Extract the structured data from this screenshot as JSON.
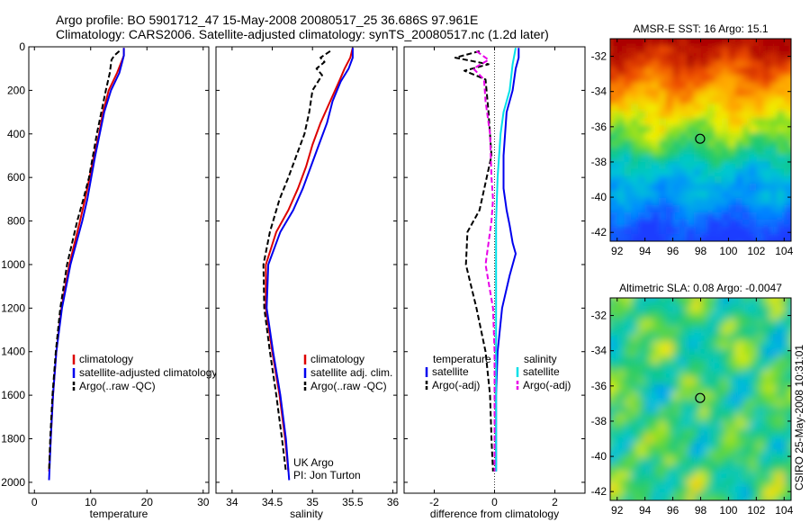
{
  "header": {
    "title_line1": "Argo profile: BO 5901712_47 15-May-2008 20080517_25 36.686S 97.961E",
    "title_line2": "Climatology: CARS2006. Satellite-adjusted climatology: synTS_20080517.nc (1.2d later)"
  },
  "side_note": "CSIRO 25-May-2008 10:31:01",
  "colors": {
    "clim": "#dd0000",
    "sat": "#0000ee",
    "argo": "#000000",
    "cyan": "#00e0e8",
    "magenta": "#e800e8"
  },
  "chart_data": [
    {
      "id": "temperature",
      "type": "line",
      "xlabel": "temperature",
      "xlim": [
        -1,
        31
      ],
      "ylim": [
        2050,
        0
      ],
      "xticks": [
        0,
        10,
        20,
        30
      ],
      "yticks": [
        0,
        200,
        400,
        600,
        800,
        1000,
        1200,
        1400,
        1600,
        1800,
        2000
      ],
      "legend": [
        "climatology",
        "satellite-adjusted climatology",
        "Argo(..raw -QC)"
      ],
      "series": [
        {
          "name": "climatology",
          "color": "#dd0000",
          "style": "solid",
          "x": [
            15.9,
            15.9,
            15.6,
            14.7,
            13.2,
            12.2,
            11.5,
            10.6,
            9.8,
            9.0,
            8.1,
            6.2,
            4.8,
            3.9,
            3.3,
            2.9,
            2.6
          ],
          "y": [
            5,
            40,
            60,
            120,
            200,
            300,
            400,
            500,
            600,
            700,
            800,
            1000,
            1200,
            1400,
            1600,
            1800,
            1950
          ]
        },
        {
          "name": "satellite-adjusted climatology",
          "color": "#0000ee",
          "style": "solid",
          "x": [
            15.9,
            15.9,
            15.7,
            15.1,
            13.6,
            12.4,
            11.6,
            10.8,
            10.1,
            9.4,
            8.5,
            6.4,
            4.9,
            3.9,
            3.3,
            2.9,
            2.6
          ],
          "y": [
            5,
            40,
            60,
            120,
            200,
            300,
            400,
            500,
            600,
            700,
            800,
            1000,
            1200,
            1400,
            1600,
            1800,
            1990
          ]
        },
        {
          "name": "Argo(..raw -QC)",
          "color": "#000000",
          "style": "dashed",
          "x": [
            15.1,
            14.2,
            13.7,
            13.4,
            12.7,
            11.9,
            11.1,
            10.4,
            9.7,
            8.7,
            7.6,
            5.8,
            4.6,
            3.8,
            3.2,
            2.8,
            2.6
          ],
          "y": [
            20,
            40,
            60,
            120,
            200,
            300,
            400,
            500,
            600,
            700,
            800,
            1000,
            1200,
            1400,
            1600,
            1800,
            1950
          ]
        }
      ]
    },
    {
      "id": "salinity",
      "type": "line",
      "xlabel": "salinity",
      "xlim": [
        33.8,
        36.05
      ],
      "ylim": [
        2050,
        0
      ],
      "xticks": [
        34,
        34.5,
        35,
        35.5,
        36
      ],
      "yticks": [
        0,
        200,
        400,
        600,
        800,
        1000,
        1200,
        1400,
        1600,
        1800,
        2000
      ],
      "legend": [
        "climatology",
        "satellite adj. clim.",
        "Argo(..raw -QC)"
      ],
      "annotation": [
        "UK Argo",
        "PI: Jon Turton"
      ],
      "series": [
        {
          "name": "climatology",
          "color": "#dd0000",
          "style": "solid",
          "x": [
            35.5,
            35.47,
            35.4,
            35.33,
            35.22,
            35.1,
            35.0,
            34.92,
            34.82,
            34.7,
            34.55,
            34.42,
            34.42,
            34.5,
            34.59,
            34.66,
            34.7
          ],
          "y": [
            5,
            50,
            100,
            160,
            250,
            350,
            450,
            550,
            650,
            750,
            850,
            1000,
            1200,
            1400,
            1600,
            1800,
            1950
          ]
        },
        {
          "name": "satellite adj. clim.",
          "color": "#0000ee",
          "style": "solid",
          "x": [
            35.5,
            35.5,
            35.45,
            35.35,
            35.25,
            35.18,
            35.08,
            34.98,
            34.88,
            34.76,
            34.6,
            34.45,
            34.43,
            34.51,
            34.6,
            34.67,
            34.71
          ],
          "y": [
            5,
            50,
            100,
            160,
            250,
            350,
            450,
            550,
            650,
            750,
            850,
            1000,
            1200,
            1400,
            1600,
            1800,
            1990
          ]
        },
        {
          "name": "Argo(..raw -QC)",
          "color": "#000000",
          "style": "dashed",
          "x": [
            35.22,
            35.1,
            35.15,
            35.05,
            35.12,
            35.0,
            34.96,
            34.9,
            34.8,
            34.7,
            34.59,
            34.47,
            34.39,
            34.4,
            34.47,
            34.55,
            34.62,
            34.67
          ],
          "y": [
            20,
            50,
            70,
            100,
            130,
            200,
            300,
            400,
            500,
            600,
            700,
            850,
            1000,
            1200,
            1400,
            1600,
            1800,
            1950
          ]
        }
      ]
    },
    {
      "id": "difference",
      "type": "line",
      "xlabel": "difference from climatology",
      "xlim": [
        -3,
        3
      ],
      "ylim": [
        2050,
        0
      ],
      "xticks": [
        -2,
        0,
        2
      ],
      "yticks": [
        0,
        200,
        400,
        600,
        800,
        1000,
        1200,
        1400,
        1600,
        1800,
        2000
      ],
      "legend_left_title": "temperature",
      "legend_right_title": "salinity",
      "legend": [
        "satellite",
        "Argo(-adj)",
        "satellite",
        "Argo(-adj)"
      ],
      "series": [
        {
          "name": "satellite",
          "color": "#0000ee",
          "style": "solid",
          "x": [
            0.8,
            0.8,
            0.7,
            0.6,
            0.4,
            0.3,
            0.3,
            0.4,
            0.5,
            0.6,
            0.7,
            0.5,
            0.25,
            0.1,
            0.05,
            0.05
          ],
          "y": [
            5,
            50,
            100,
            200,
            300,
            500,
            650,
            750,
            820,
            900,
            950,
            1050,
            1200,
            1400,
            1600,
            1950
          ]
        },
        {
          "name": "Argo(-adj)",
          "color": "#000000",
          "style": "dashed",
          "x": [
            -0.5,
            -1.3,
            -0.2,
            -1.0,
            -0.3,
            -0.2,
            -0.1,
            -0.5,
            -0.9,
            -0.95,
            -0.6,
            -0.3,
            -0.15,
            -0.1,
            -0.05
          ],
          "y": [
            20,
            50,
            80,
            110,
            150,
            300,
            500,
            750,
            850,
            1000,
            1200,
            1400,
            1600,
            1800,
            1950
          ]
        },
        {
          "name": "satellite",
          "color": "#00e0e8",
          "style": "solid",
          "x": [
            0.7,
            0.6,
            0.5,
            0.3,
            0.2,
            0.1,
            0.05,
            0.05,
            0.05,
            0.05,
            0.05,
            0.05
          ],
          "y": [
            5,
            80,
            200,
            300,
            400,
            600,
            800,
            1000,
            1200,
            1400,
            1600,
            1950
          ]
        },
        {
          "name": "Argo(-adj)",
          "color": "#e800e8",
          "style": "dashed",
          "x": [
            -0.6,
            -0.2,
            -0.7,
            -0.35,
            -0.3,
            -0.15,
            -0.1,
            -0.05,
            -0.1,
            -0.3,
            -0.05,
            0,
            0
          ],
          "y": [
            20,
            60,
            100,
            150,
            250,
            400,
            600,
            700,
            800,
            1000,
            1200,
            1400,
            1950
          ]
        }
      ]
    },
    {
      "id": "sst-map",
      "type": "heatmap",
      "title": "AMSR-E SST: 16 Argo: 15.1",
      "xlim": [
        91.5,
        104.5
      ],
      "ylim": [
        -42.5,
        -31
      ],
      "xticks": [
        92,
        94,
        96,
        98,
        100,
        102,
        104
      ],
      "yticks": [
        -32,
        -34,
        -36,
        -38,
        -40,
        -42
      ],
      "marker": {
        "lon": 97.961,
        "lat": -36.686
      }
    },
    {
      "id": "sla-map",
      "type": "heatmap",
      "title": "Altimetric SLA: 0.08 Argo: -0.0047",
      "xlim": [
        91.5,
        104.5
      ],
      "ylim": [
        -42.5,
        -31
      ],
      "xticks": [
        92,
        94,
        96,
        98,
        100,
        102,
        104
      ],
      "yticks": [
        -32,
        -34,
        -36,
        -38,
        -40,
        -42
      ],
      "marker": {
        "lon": 97.961,
        "lat": -36.686
      }
    }
  ]
}
